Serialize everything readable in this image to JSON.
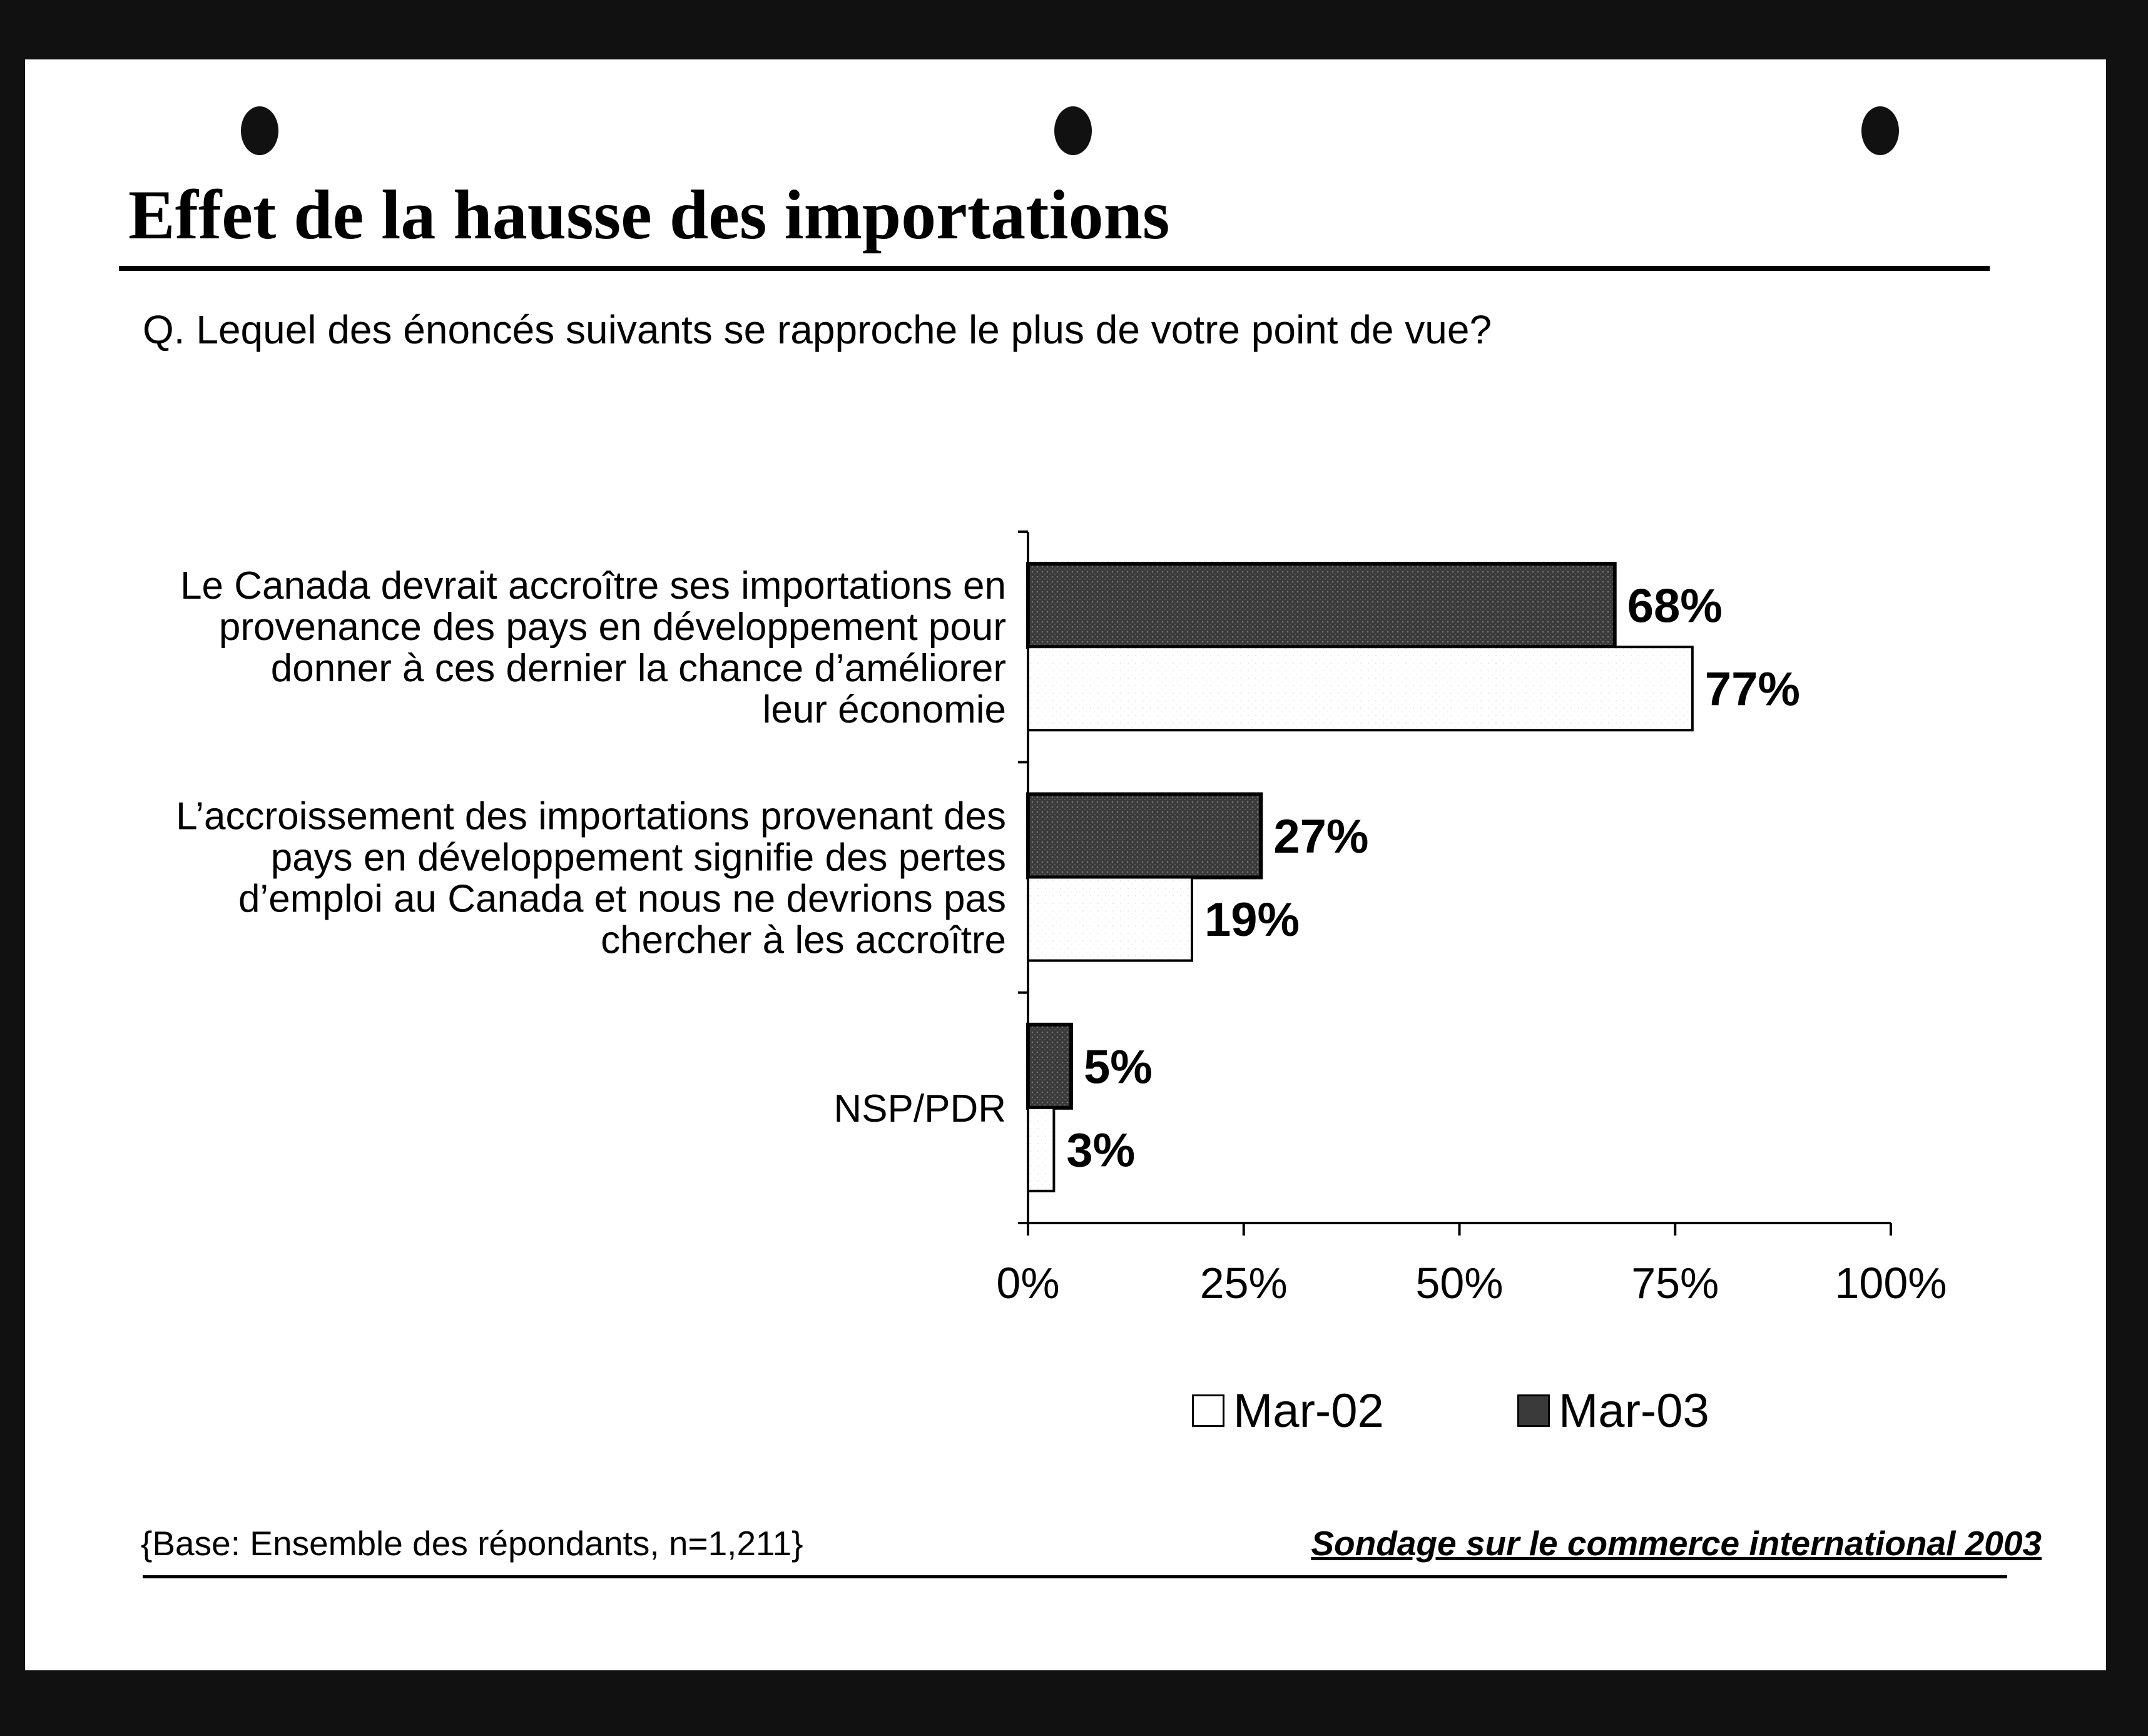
{
  "title": "Effet de la hausse des importations",
  "question": "Q. Lequel des énoncés suivants se rapproche le plus de votre point de vue?",
  "base_note": "{Base: Ensemble des répondants, n=1,211}",
  "source_note": "Sondage sur le commerce international 2003",
  "colors": {
    "mar02": "#ffffff",
    "mar03": "#3a3a3a",
    "background": "#111111"
  },
  "chart_data": {
    "type": "bar",
    "orientation": "horizontal",
    "title": "Effet de la hausse des importations",
    "categories": [
      [
        "Le Canada devrait accroître ses importations en",
        "provenance des pays en développement pour",
        "donner à ces dernier la chance d’améliorer",
        "leur économie"
      ],
      [
        "L’accroissement des importations provenant des",
        "pays en développement signifie des pertes",
        "d’emploi au Canada et nous ne devrions pas",
        "chercher à les accroître"
      ],
      [
        "NSP/PDR"
      ]
    ],
    "series": [
      {
        "name": "Mar-03",
        "values": [
          68,
          27,
          5
        ],
        "labels": [
          "68%",
          "27%",
          "5%"
        ]
      },
      {
        "name": "Mar-02",
        "values": [
          77,
          19,
          3
        ],
        "labels": [
          "77%",
          "19%",
          "3%"
        ]
      }
    ],
    "xlim": [
      0,
      100
    ],
    "xticks": [
      "0%",
      "25%",
      "50%",
      "75%",
      "100%"
    ],
    "legend": [
      {
        "name": "Mar-02",
        "color": "#ffffff"
      },
      {
        "name": "Mar-03",
        "color": "#3a3a3a"
      }
    ],
    "legend_position": "bottom",
    "grid": false
  }
}
